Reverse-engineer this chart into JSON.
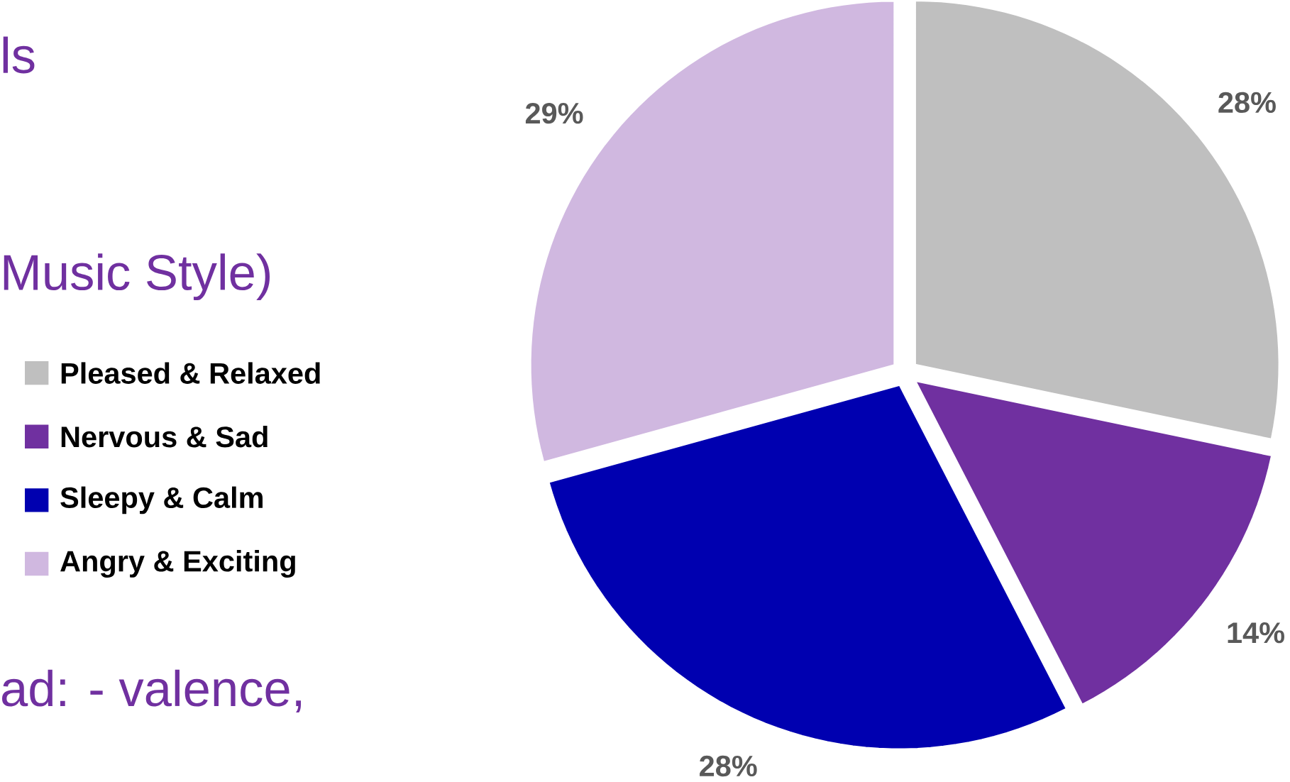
{
  "chart_data": {
    "type": "pie",
    "categories": [
      "Pleased & Relaxed",
      "Nervous & Sad",
      "Sleepy & Calm",
      "Angry & Exciting"
    ],
    "values": [
      28,
      14,
      28,
      29
    ],
    "value_labels": [
      "28%",
      "14%",
      "28%",
      "29%"
    ],
    "colors": [
      "#bfbfbf",
      "#7030a0",
      "#0000b0",
      "#d0b8e0"
    ],
    "legend": "left",
    "annotations": [
      "ls",
      "Music Style)",
      "ad: - valence,"
    ]
  }
}
